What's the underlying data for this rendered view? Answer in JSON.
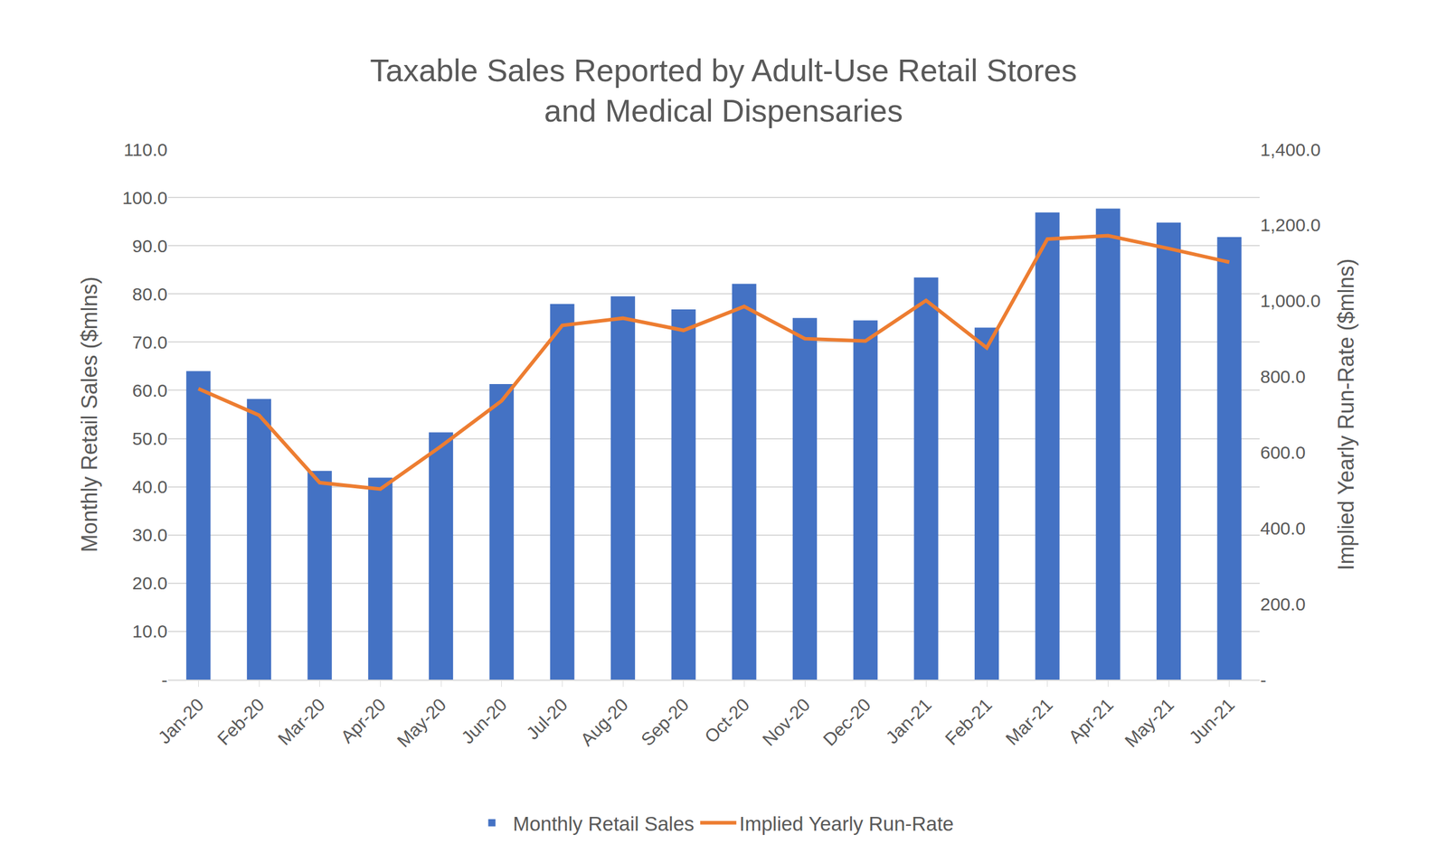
{
  "chart_data": {
    "type": "bar",
    "title": "Taxable Sales Reported by Adult-Use Retail Stores\nand Medical Dispensaries",
    "y_label": "Monthly Retail Sales ($mlns)",
    "y2_label": "Implied Yearly Run-Rate ($mlns)",
    "categories": [
      "Jan-20",
      "Feb-20",
      "Mar-20",
      "Apr-20",
      "May-20",
      "Jun-20",
      "Jul-20",
      "Aug-20",
      "Sep-20",
      "Oct-20",
      "Nov-20",
      "Dec-20",
      "Jan-21",
      "Feb-21",
      "Mar-21",
      "Apr-21",
      "May-21",
      "Jun-21"
    ],
    "series": [
      {
        "name": "Monthly Retail Sales",
        "type": "bar",
        "color": "#4472c4",
        "values": [
          64.0,
          58.2,
          43.3,
          41.9,
          51.3,
          61.3,
          77.9,
          79.5,
          76.8,
          82.1,
          75.0,
          74.5,
          83.4,
          73.0,
          96.9,
          97.7,
          94.8,
          91.8
        ]
      },
      {
        "name": "Implied Yearly Run-Rate",
        "type": "line",
        "color": "#ed7d31",
        "axis": "y2",
        "values": [
          768,
          698,
          520,
          503,
          616,
          736,
          935,
          954,
          922,
          985,
          900,
          894,
          1001,
          876,
          1163,
          1172,
          1138,
          1102
        ]
      }
    ],
    "ylim": [
      0,
      110
    ],
    "yticks": [
      {
        "value": 0,
        "label": "-"
      },
      {
        "value": 10,
        "label": "10.0"
      },
      {
        "value": 20,
        "label": "20.0"
      },
      {
        "value": 30,
        "label": "30.0"
      },
      {
        "value": 40,
        "label": "40.0"
      },
      {
        "value": 50,
        "label": "50.0"
      },
      {
        "value": 60,
        "label": "60.0"
      },
      {
        "value": 70,
        "label": "70.0"
      },
      {
        "value": 80,
        "label": "80.0"
      },
      {
        "value": 90,
        "label": "90.0"
      },
      {
        "value": 100,
        "label": "100.0"
      },
      {
        "value": 110,
        "label": "110.0"
      }
    ],
    "y2lim": [
      0,
      1400
    ],
    "y2ticks": [
      {
        "value": 0,
        "label": "-"
      },
      {
        "value": 200,
        "label": "200.0"
      },
      {
        "value": 400,
        "label": "400.0"
      },
      {
        "value": 600,
        "label": "600.0"
      },
      {
        "value": 800,
        "label": "800.0"
      },
      {
        "value": 1000,
        "label": "1,000.0"
      },
      {
        "value": 1200,
        "label": "1,200.0"
      },
      {
        "value": 1400,
        "label": "1,400.0"
      }
    ],
    "grid": true,
    "legend": "bottom"
  }
}
